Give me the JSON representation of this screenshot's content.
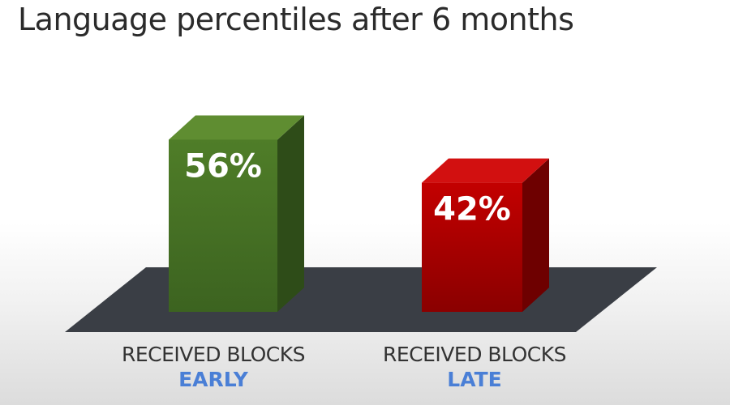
{
  "title": "Language percentiles after 6 months",
  "colors": {
    "bar_early_front": "#4f7d28",
    "bar_early_top": "#5f8d31",
    "bar_early_side": "#2e4c18",
    "bar_late_front": "#c30000",
    "bar_late_top": "#d21010",
    "bar_late_side": "#6e0000",
    "floor": "#3a3e45",
    "label_accent": "#4a7fd6"
  },
  "chart_data": {
    "type": "bar",
    "title": "Language percentiles after 6 months",
    "categories": [
      "RECEIVED BLOCKS EARLY",
      "RECEIVED BLOCKS LATE"
    ],
    "category_lines": [
      {
        "line1": "RECEIVED BLOCKS",
        "line2": "EARLY"
      },
      {
        "line1": "RECEIVED BLOCKS",
        "line2": "LATE"
      }
    ],
    "values": [
      56,
      42
    ],
    "data_labels": [
      "56%",
      "42%"
    ],
    "ylim": [
      0,
      100
    ],
    "grid": false
  }
}
